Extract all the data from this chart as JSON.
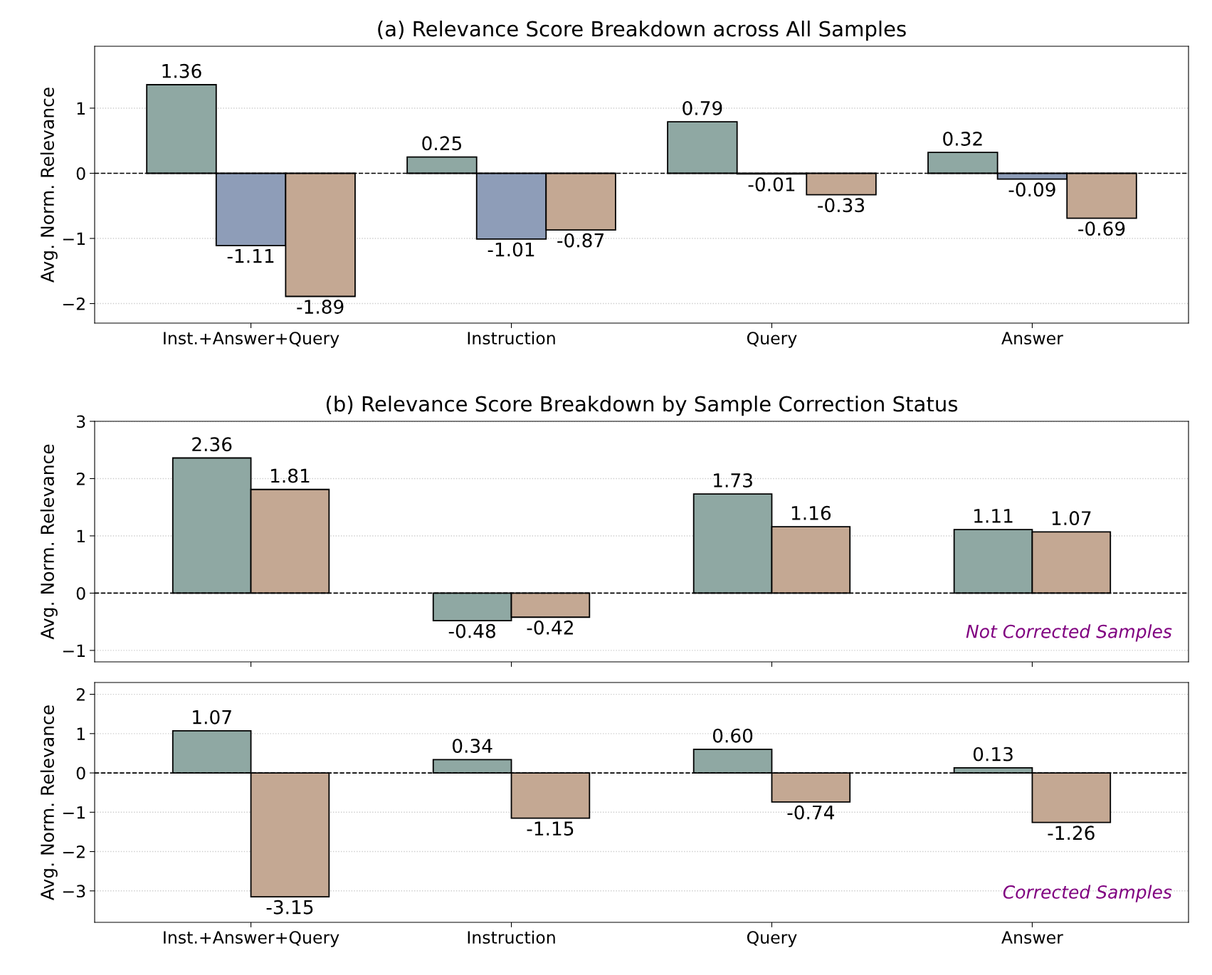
{
  "chart_data": [
    {
      "type": "bar",
      "title": "(a) Relevance Score Breakdown across All Samples",
      "ylabel": "Avg. Norm. Relevance",
      "categories": [
        "Inst.+Answer+Query",
        "Instruction",
        "Query",
        "Answer"
      ],
      "ylim": [
        -2.3,
        1.95
      ],
      "yticks": [
        {
          "value": -2,
          "label": "−2"
        },
        {
          "value": -1,
          "label": "−1"
        },
        0,
        1
      ],
      "grid": "y",
      "ref_lines": [
        {
          "axis": "y",
          "value": 0,
          "color": "#000000",
          "line_style": "dashed"
        }
      ],
      "series": [
        {
          "color": "#8fa8a3",
          "values": [
            1.36,
            0.25,
            0.79,
            0.32
          ],
          "value_labels": [
            "1.36",
            "0.25",
            "0.79",
            "0.32"
          ]
        },
        {
          "color": "#8e9db8",
          "values": [
            -1.11,
            -1.01,
            -0.01,
            -0.09
          ],
          "value_labels": [
            "-1.11",
            "-1.01",
            "-0.01",
            "-0.09"
          ]
        },
        {
          "color": "#c4a893",
          "values": [
            -1.89,
            -0.87,
            -0.33,
            -0.69
          ],
          "value_labels": [
            "-1.89",
            "-0.87",
            "-0.33",
            "-0.69"
          ]
        }
      ]
    },
    {
      "type": "bar",
      "title": "(b) Relevance Score Breakdown by Sample Correction Status",
      "ylabel": "Avg. Norm. Relevance",
      "categories": [
        null,
        null,
        null,
        null
      ],
      "tick_labels": "y",
      "ylim": [
        -1.2,
        3
      ],
      "yticks": [
        {
          "value": -1,
          "label": "−1"
        },
        0,
        1,
        2,
        3
      ],
      "grid": "y",
      "ref_lines": [
        {
          "axis": "y",
          "value": 0,
          "color": "#000000",
          "line_style": "dashed"
        }
      ],
      "annotations": [
        "Not Corrected Samples"
      ],
      "series": [
        {
          "color": "#8fa8a3",
          "values": [
            2.36,
            -0.48,
            1.73,
            1.11
          ],
          "value_labels": [
            "2.36",
            "-0.48",
            "1.73",
            "1.11"
          ]
        },
        {
          "color": "#c4a893",
          "values": [
            1.81,
            -0.42,
            1.16,
            1.07
          ],
          "value_labels": [
            "1.81",
            "-0.42",
            "1.16",
            "1.07"
          ]
        }
      ]
    },
    {
      "type": "bar",
      "ylabel": "Avg. Norm. Relevance",
      "categories": [
        "Inst.+Answer+Query",
        "Instruction",
        "Query",
        "Answer"
      ],
      "ylim": [
        -3.8,
        2.3
      ],
      "yticks": [
        {
          "value": -3,
          "label": "−3"
        },
        {
          "value": -2,
          "label": "−2"
        },
        {
          "value": -1,
          "label": "−1"
        },
        0,
        1,
        2
      ],
      "grid": "y",
      "ref_lines": [
        {
          "axis": "y",
          "value": 0,
          "color": "#000000",
          "line_style": "dashed"
        }
      ],
      "annotations": [
        "Corrected Samples"
      ],
      "series": [
        {
          "color": "#8fa8a3",
          "values": [
            1.07,
            0.34,
            0.6,
            0.13
          ],
          "value_labels": [
            "1.07",
            "0.34",
            "0.60",
            "0.13"
          ]
        },
        {
          "color": "#c4a893",
          "values": [
            -3.15,
            -1.15,
            -0.74,
            -1.26
          ],
          "value_labels": [
            "-3.15",
            "-1.15",
            "-0.74",
            "-1.26"
          ]
        }
      ]
    }
  ]
}
